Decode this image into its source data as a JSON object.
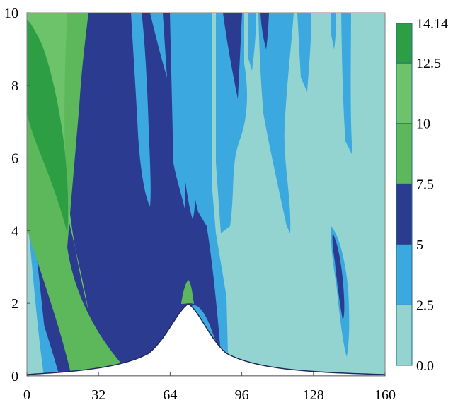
{
  "chart_data": {
    "type": "heatmap",
    "title": "",
    "xlabel": "",
    "ylabel": "",
    "xlim": [
      0,
      160
    ],
    "ylim": [
      0,
      10
    ],
    "x_ticks": [
      0,
      32,
      64,
      96,
      128,
      160
    ],
    "y_ticks": [
      0,
      2,
      4,
      6,
      8,
      10
    ],
    "x_tick_labels": [
      "0",
      "32",
      "64",
      "96",
      "128",
      "160"
    ],
    "y_tick_labels": [
      "0",
      "2",
      "4",
      "6",
      "8",
      "10"
    ],
    "grid": false,
    "colorbar": {
      "placement": "right",
      "levels": [
        0.0,
        2.5,
        5,
        7.5,
        10,
        12.5,
        14.14
      ],
      "level_labels": [
        "0.0",
        "2.5",
        "5",
        "7.5",
        "10",
        "12.5",
        "14.14"
      ],
      "colors": [
        "#93d3d0",
        "#3ba9e0",
        "#2b3b8f",
        "#5cb85a",
        "#6cc36a",
        "#2e9e45"
      ]
    },
    "obstacle": {
      "shape": "bell-shaped hill",
      "peak_x": 72,
      "peak_height": 2,
      "color": "#ffffff"
    },
    "regions": [
      {
        "name": "region-0-2.5",
        "range": [
          0.0,
          2.5
        ],
        "color": "#93d3d0"
      },
      {
        "name": "region-2.5-5",
        "range": [
          2.5,
          5
        ],
        "color": "#3ba9e0"
      },
      {
        "name": "region-5-7.5",
        "range": [
          5,
          7.5
        ],
        "color": "#2b3b8f"
      },
      {
        "name": "region-7.5-10",
        "range": [
          7.5,
          10
        ],
        "color": "#5cb85a"
      },
      {
        "name": "region-10-12.5",
        "range": [
          10,
          12.5
        ],
        "color": "#6cc36a"
      },
      {
        "name": "region-12.5-14.14",
        "range": [
          12.5,
          14.14
        ],
        "color": "#2e9e45"
      }
    ]
  }
}
